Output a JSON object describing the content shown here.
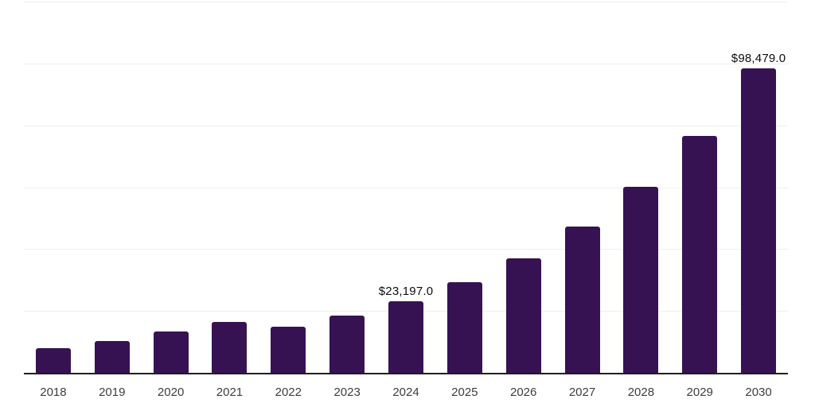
{
  "chart_data": {
    "type": "bar",
    "title": "",
    "xlabel": "",
    "ylabel": "",
    "categories": [
      "2018",
      "2019",
      "2020",
      "2021",
      "2022",
      "2023",
      "2024",
      "2025",
      "2026",
      "2027",
      "2028",
      "2029",
      "2030"
    ],
    "values": [
      7900,
      10200,
      13300,
      16400,
      14800,
      18400,
      23197,
      29200,
      37100,
      47300,
      60100,
      76700,
      98479
    ],
    "value_labels": [
      "",
      "",
      "",
      "",
      "",
      "",
      "$23,197.0",
      "",
      "",
      "",
      "",
      "",
      "$98,479.0"
    ],
    "ylim": [
      0,
      120000
    ],
    "gridline_step": 20000,
    "grid": "horizontal-only",
    "legend_position": "none",
    "colors": {
      "bar": "#371253",
      "axis_line": "#1f1f1f",
      "gridline": "#efefef",
      "value_label_text": "#0d0d0d",
      "tick_label_text": "#3d3d3d",
      "background": "#ffffff"
    }
  }
}
